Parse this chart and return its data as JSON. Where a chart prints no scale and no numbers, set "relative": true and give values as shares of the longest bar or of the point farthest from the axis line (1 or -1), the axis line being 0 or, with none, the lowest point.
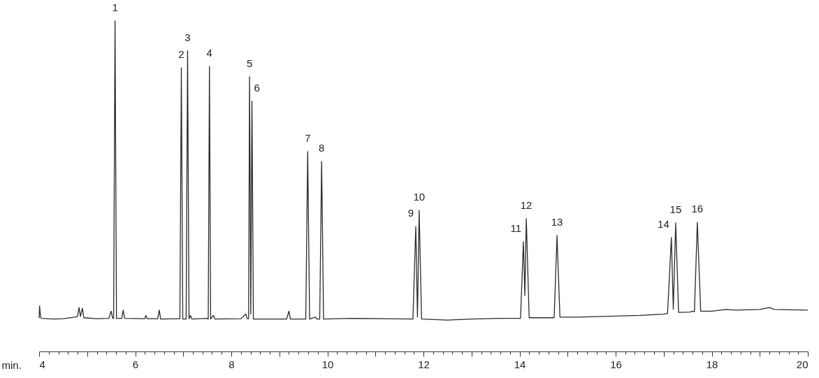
{
  "chart_data": {
    "type": "line",
    "relative": true,
    "xlabel": "min.",
    "xlim": [
      4,
      20
    ],
    "xticks": [
      4,
      {
        "value": 4.2,
        "label": null
      },
      {
        "value": 4.4,
        "label": null
      },
      {
        "value": 4.6,
        "label": null
      },
      {
        "value": 4.8,
        "label": null
      },
      {
        "value": 5,
        "label": null
      },
      {
        "value": 5.2,
        "label": null
      },
      {
        "value": 5.4,
        "label": null
      },
      {
        "value": 5.6,
        "label": null
      },
      {
        "value": 5.8,
        "label": null
      },
      6,
      {
        "value": 6.2,
        "label": null
      },
      {
        "value": 6.4,
        "label": null
      },
      {
        "value": 6.6,
        "label": null
      },
      {
        "value": 6.8,
        "label": null
      },
      {
        "value": 7,
        "label": null
      },
      {
        "value": 7.2,
        "label": null
      },
      {
        "value": 7.4,
        "label": null
      },
      {
        "value": 7.6,
        "label": null
      },
      {
        "value": 7.8,
        "label": null
      },
      8,
      {
        "value": 8.2,
        "label": null
      },
      {
        "value": 8.4,
        "label": null
      },
      {
        "value": 8.6,
        "label": null
      },
      {
        "value": 8.8,
        "label": null
      },
      {
        "value": 9,
        "label": null
      },
      {
        "value": 9.2,
        "label": null
      },
      {
        "value": 9.4,
        "label": null
      },
      {
        "value": 9.6,
        "label": null
      },
      {
        "value": 9.8,
        "label": null
      },
      10,
      {
        "value": 10.2,
        "label": null
      },
      {
        "value": 10.4,
        "label": null
      },
      {
        "value": 10.6,
        "label": null
      },
      {
        "value": 10.8,
        "label": null
      },
      {
        "value": 11,
        "label": null
      },
      {
        "value": 11.2,
        "label": null
      },
      {
        "value": 11.4,
        "label": null
      },
      {
        "value": 11.6,
        "label": null
      },
      {
        "value": 11.8,
        "label": null
      },
      12,
      {
        "value": 12.2,
        "label": null
      },
      {
        "value": 12.4,
        "label": null
      },
      {
        "value": 12.6,
        "label": null
      },
      {
        "value": 12.8,
        "label": null
      },
      {
        "value": 13,
        "label": null
      },
      {
        "value": 13.2,
        "label": null
      },
      {
        "value": 13.4,
        "label": null
      },
      {
        "value": 13.6,
        "label": null
      },
      {
        "value": 13.8,
        "label": null
      },
      14,
      {
        "value": 14.2,
        "label": null
      },
      {
        "value": 14.4,
        "label": null
      },
      {
        "value": 14.6,
        "label": null
      },
      {
        "value": 14.8,
        "label": null
      },
      {
        "value": 15,
        "label": null
      },
      {
        "value": 15.2,
        "label": null
      },
      {
        "value": 15.4,
        "label": null
      },
      {
        "value": 15.6,
        "label": null
      },
      {
        "value": 15.8,
        "label": null
      },
      16,
      {
        "value": 16.2,
        "label": null
      },
      {
        "value": 16.4,
        "label": null
      },
      {
        "value": 16.6,
        "label": null
      },
      {
        "value": 16.8,
        "label": null
      },
      {
        "value": 17,
        "label": null
      },
      {
        "value": 17.2,
        "label": null
      },
      {
        "value": 17.4,
        "label": null
      },
      {
        "value": 17.6,
        "label": null
      },
      {
        "value": 17.8,
        "label": null
      },
      18,
      {
        "value": 18.2,
        "label": null
      },
      {
        "value": 18.4,
        "label": null
      },
      {
        "value": 18.6,
        "label": null
      },
      {
        "value": 18.8,
        "label": null
      },
      {
        "value": 19,
        "label": null
      },
      {
        "value": 19.2,
        "label": null
      },
      {
        "value": 19.4,
        "label": null
      },
      {
        "value": 19.6,
        "label": null
      },
      {
        "value": 19.8,
        "label": null
      },
      20
    ],
    "series": [
      {
        "color": "#2a2a2a",
        "x": [
          4.0,
          4.01,
          4.03,
          4.05,
          4.3,
          4.5,
          4.75,
          4.8,
          4.83,
          4.86,
          4.9,
          4.93,
          5.2,
          5.45,
          5.5,
          5.53,
          5.55,
          5.58,
          5.61,
          5.72,
          5.75,
          5.78,
          6.2,
          6.22,
          6.25,
          6.47,
          6.5,
          6.53,
          6.9,
          6.93,
          6.96,
          6.99,
          7.06,
          7.09,
          7.12,
          7.15,
          7.18,
          7.5,
          7.52,
          7.545,
          7.57,
          7.63,
          7.66,
          8.2,
          8.25,
          8.3,
          8.33,
          8.36,
          8.38,
          8.405,
          8.43,
          8.46,
          9.15,
          9.2,
          9.23,
          9.55,
          9.59,
          9.63,
          9.75,
          9.78,
          9.84,
          9.88,
          9.92,
          10.5,
          11.2,
          11.78,
          11.84,
          11.875,
          11.91,
          11.96,
          12.5,
          13.0,
          13.6,
          14.02,
          14.08,
          14.11,
          14.14,
          14.2,
          14.5,
          14.72,
          14.78,
          14.84,
          15.2,
          16.0,
          16.5,
          17.0,
          17.08,
          17.16,
          17.2,
          17.25,
          17.31,
          17.55,
          17.6,
          17.64,
          17.7,
          17.77,
          18.0,
          18.3,
          18.5,
          19.0,
          19.2,
          19.3,
          20.0
        ],
        "values": [
          0.101,
          0.138,
          0.104,
          0.1,
          0.098,
          0.099,
          0.104,
          0.106,
          0.133,
          0.106,
          0.131,
          0.102,
          0.099,
          0.1,
          0.122,
          0.1,
          0.1,
          1.0,
          0.1,
          0.1,
          0.125,
          0.1,
          0.099,
          0.109,
          0.099,
          0.099,
          0.125,
          0.098,
          0.099,
          0.099,
          0.858,
          0.098,
          0.098,
          0.91,
          0.099,
          0.109,
          0.098,
          0.1,
          0.098,
          0.862,
          0.098,
          0.109,
          0.098,
          0.099,
          0.106,
          0.113,
          0.099,
          0.099,
          0.831,
          0.113,
          0.757,
          0.098,
          0.098,
          0.122,
          0.098,
          0.098,
          0.605,
          0.098,
          0.104,
          0.098,
          0.098,
          0.575,
          0.098,
          0.1,
          0.099,
          0.098,
          0.378,
          0.104,
          0.427,
          0.098,
          0.095,
          0.098,
          0.1,
          0.1,
          0.332,
          0.169,
          0.402,
          0.102,
          0.102,
          0.102,
          0.351,
          0.104,
          0.104,
          0.107,
          0.109,
          0.113,
          0.115,
          0.345,
          0.128,
          0.389,
          0.118,
          0.119,
          0.122,
          0.12,
          0.391,
          0.122,
          0.122,
          0.127,
          0.125,
          0.127,
          0.133,
          0.127,
          0.125
        ]
      }
    ],
    "annotations": [
      {
        "text": "1",
        "x": 5.58,
        "y": 1.0
      },
      {
        "text": "2",
        "x": 6.96,
        "y": 0.858
      },
      {
        "text": "3",
        "x": 7.09,
        "y": 0.91
      },
      {
        "text": "4",
        "x": 7.545,
        "y": 0.862
      },
      {
        "text": "5",
        "x": 8.38,
        "y": 0.831
      },
      {
        "text": "6",
        "x": 8.43,
        "y": 0.757
      },
      {
        "text": "7",
        "x": 9.59,
        "y": 0.605
      },
      {
        "text": "8",
        "x": 9.88,
        "y": 0.575
      },
      {
        "text": "9",
        "x": 11.84,
        "y": 0.378
      },
      {
        "text": "10",
        "x": 11.91,
        "y": 0.427
      },
      {
        "text": "11",
        "x": 14.08,
        "y": 0.332
      },
      {
        "text": "12",
        "x": 14.14,
        "y": 0.402
      },
      {
        "text": "13",
        "x": 14.78,
        "y": 0.351
      },
      {
        "text": "14",
        "x": 17.16,
        "y": 0.345
      },
      {
        "text": "15",
        "x": 17.25,
        "y": 0.389
      },
      {
        "text": "16",
        "x": 17.7,
        "y": 0.391
      }
    ]
  }
}
